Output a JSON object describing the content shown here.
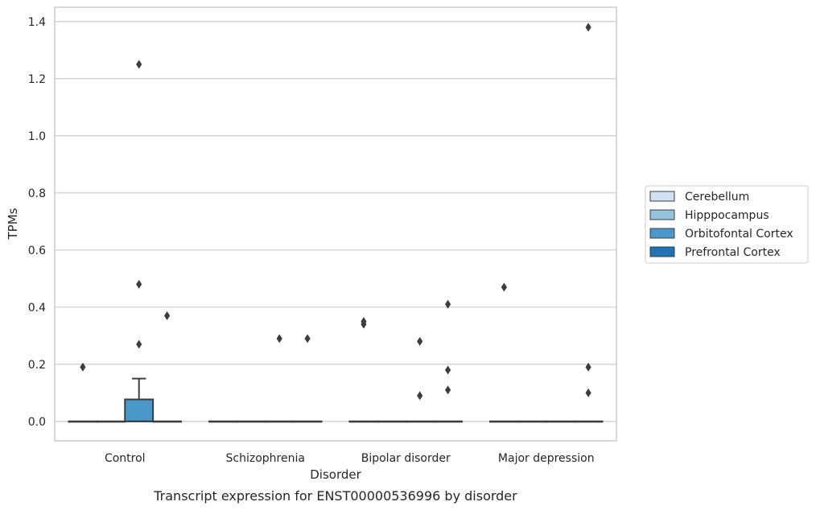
{
  "chart_data": {
    "type": "box",
    "title": "",
    "caption": "Transcript expression for ENST00000536996 by disorder",
    "xlabel": "Disorder",
    "ylabel": "TPMs",
    "ylim": [
      -0.068,
      1.45
    ],
    "yticks": [
      0.0,
      0.2,
      0.4,
      0.6,
      0.8,
      1.0,
      1.2,
      1.4
    ],
    "ytick_labels": [
      "0.0",
      "0.2",
      "0.4",
      "0.6",
      "0.8",
      "1.0",
      "1.2",
      "1.4"
    ],
    "grid": true,
    "legend_position": "right",
    "categories": [
      "Control",
      "Schizophrenia",
      "Bipolar disorder",
      "Major depression"
    ],
    "series": [
      {
        "name": "Cerebellum",
        "color": "#cfe1f2",
        "boxes": [
          {
            "q1": 0,
            "median": 0,
            "q3": 0,
            "whisker_low": 0,
            "whisker_high": 0,
            "outliers": [
              0.19
            ]
          },
          {
            "q1": 0,
            "median": 0,
            "q3": 0,
            "whisker_low": 0,
            "whisker_high": 0,
            "outliers": []
          },
          {
            "q1": 0,
            "median": 0,
            "q3": 0,
            "whisker_low": 0,
            "whisker_high": 0,
            "outliers": [
              0.34,
              0.35
            ]
          },
          {
            "q1": 0,
            "median": 0,
            "q3": 0,
            "whisker_low": 0,
            "whisker_high": 0,
            "outliers": [
              0.47
            ]
          }
        ]
      },
      {
        "name": "Hipppocampus",
        "color": "#93c4de",
        "boxes": [
          {
            "q1": 0,
            "median": 0,
            "q3": 0,
            "whisker_low": 0,
            "whisker_high": 0,
            "outliers": []
          },
          {
            "q1": 0,
            "median": 0,
            "q3": 0,
            "whisker_low": 0,
            "whisker_high": 0,
            "outliers": []
          },
          {
            "q1": 0,
            "median": 0,
            "q3": 0,
            "whisker_low": 0,
            "whisker_high": 0,
            "outliers": []
          },
          {
            "q1": 0,
            "median": 0,
            "q3": 0,
            "whisker_low": 0,
            "whisker_high": 0,
            "outliers": []
          }
        ]
      },
      {
        "name": "Orbitofontal Cortex",
        "color": "#4a98c9",
        "boxes": [
          {
            "q1": 0,
            "median": 0,
            "q3": 0.077,
            "whisker_low": 0,
            "whisker_high": 0.15,
            "outliers": [
              0.27,
              0.48,
              1.25
            ]
          },
          {
            "q1": 0,
            "median": 0,
            "q3": 0,
            "whisker_low": 0,
            "whisker_high": 0,
            "outliers": [
              0.29
            ]
          },
          {
            "q1": 0,
            "median": 0,
            "q3": 0,
            "whisker_low": 0,
            "whisker_high": 0,
            "outliers": [
              0.09,
              0.28
            ]
          },
          {
            "q1": 0,
            "median": 0,
            "q3": 0,
            "whisker_low": 0,
            "whisker_high": 0,
            "outliers": []
          }
        ]
      },
      {
        "name": "Prefrontal Cortex",
        "color": "#2171b5",
        "boxes": [
          {
            "q1": 0,
            "median": 0,
            "q3": 0,
            "whisker_low": 0,
            "whisker_high": 0,
            "outliers": [
              0.37
            ]
          },
          {
            "q1": 0,
            "median": 0,
            "q3": 0,
            "whisker_low": 0,
            "whisker_high": 0,
            "outliers": [
              0.29
            ]
          },
          {
            "q1": 0,
            "median": 0,
            "q3": 0,
            "whisker_low": 0,
            "whisker_high": 0,
            "outliers": [
              0.11,
              0.18,
              0.41
            ]
          },
          {
            "q1": 0,
            "median": 0,
            "q3": 0,
            "whisker_low": 0,
            "whisker_high": 0,
            "outliers": [
              0.1,
              0.19,
              1.38
            ]
          }
        ]
      }
    ]
  }
}
